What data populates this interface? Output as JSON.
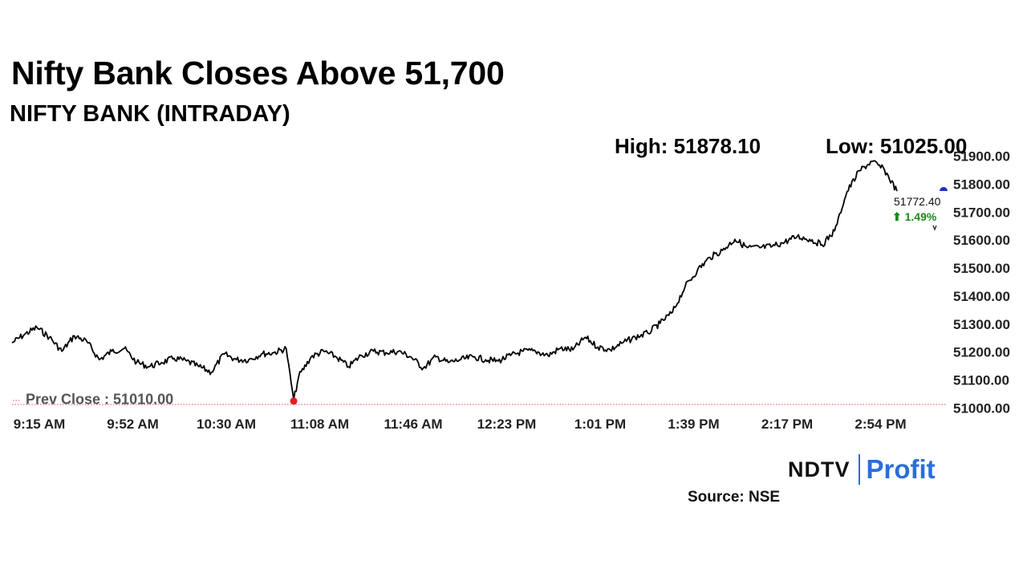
{
  "header": {
    "title": "Nifty Bank Closes Above 51,700",
    "subtitle": "NIFTY BANK (INTRADAY)",
    "high_label": "High: 51878.10",
    "low_label": "Low: 51025.00"
  },
  "last": {
    "value_label": "51772.40",
    "change_label": "⬆ 1.49%"
  },
  "prev_close_label": "Prev Close : 51010.00",
  "footer": {
    "brand_main": "NDTV",
    "brand_accent": "Profit",
    "source": "Source: NSE"
  },
  "colors": {
    "line": "#000000",
    "high_marker": "#1a8a1a",
    "low_marker": "#e02020",
    "change_up": "#1a8a1a",
    "prev_close_line": "#e05050",
    "current_marker": "#1f2fbf",
    "brand_accent": "#2a6edb"
  },
  "chart_data": {
    "type": "line",
    "title": "NIFTY BANK (INTRADAY)",
    "xlabel": "",
    "ylabel": "",
    "x_ticks": [
      "9:15 AM",
      "9:52 AM",
      "10:30 AM",
      "11:08 AM",
      "11:46 AM",
      "12:23 PM",
      "1:01 PM",
      "1:39 PM",
      "2:17 PM",
      "2:54 PM"
    ],
    "y_ticks": [
      51000,
      51100,
      51200,
      51300,
      51400,
      51500,
      51600,
      51700,
      51800,
      51900
    ],
    "y_tick_labels": [
      "51000.00",
      "51100.00",
      "51200.00",
      "51300.00",
      "51400.00",
      "51500.00",
      "51600.00",
      "51700.00",
      "51800.00",
      "51900.00"
    ],
    "ylim": [
      51000,
      51900
    ],
    "x_range": [
      "9:15 AM",
      "3:30 PM"
    ],
    "grid": false,
    "prev_close": 51010.0,
    "high": 51878.1,
    "low": 51025.0,
    "last": 51772.4,
    "change_pct": 1.49,
    "series": [
      {
        "x": [
          "9:15 AM",
          "9:20 AM",
          "9:25 AM",
          "9:30 AM",
          "9:35 AM",
          "9:40 AM",
          "9:45 AM",
          "9:50 AM",
          "9:55 AM",
          "10:00 AM",
          "10:05 AM",
          "10:10 AM",
          "10:15 AM",
          "10:20 AM",
          "10:25 AM",
          "10:30 AM",
          "10:35 AM",
          "10:40 AM",
          "10:45 AM",
          "10:50 AM",
          "10:55 AM",
          "11:00 AM",
          "11:05 AM",
          "11:08 AM",
          "11:10 AM",
          "11:15 AM",
          "11:20 AM",
          "11:25 AM",
          "11:30 AM",
          "11:35 AM",
          "11:40 AM",
          "11:45 AM",
          "11:50 AM",
          "11:55 AM",
          "12:00 PM",
          "12:05 PM",
          "12:10 PM",
          "12:15 PM",
          "12:20 PM",
          "12:25 PM",
          "12:30 PM",
          "12:35 PM",
          "12:40 PM",
          "12:45 PM",
          "12:50 PM",
          "12:55 PM",
          "1:00 PM",
          "1:05 PM",
          "1:10 PM",
          "1:15 PM",
          "1:20 PM",
          "1:25 PM",
          "1:30 PM",
          "1:35 PM",
          "1:40 PM",
          "1:45 PM",
          "1:50 PM",
          "1:55 PM",
          "2:00 PM",
          "2:05 PM",
          "2:10 PM",
          "2:15 PM",
          "2:20 PM",
          "2:25 PM",
          "2:30 PM",
          "2:35 PM",
          "2:40 PM",
          "2:45 PM",
          "2:50 PM",
          "2:55 PM",
          "3:00 PM",
          "3:05 PM",
          "3:10 PM"
        ],
        "values": [
          51230,
          51260,
          51285,
          51250,
          51200,
          51255,
          51235,
          51170,
          51200,
          51210,
          51160,
          51145,
          51160,
          51175,
          51165,
          51145,
          51125,
          51190,
          51170,
          51170,
          51190,
          51195,
          51210,
          51025,
          51110,
          51180,
          51200,
          51180,
          51145,
          51185,
          51200,
          51195,
          51200,
          51180,
          51140,
          51180,
          51160,
          51170,
          51180,
          51170,
          51165,
          51185,
          51200,
          51200,
          51185,
          51210,
          51205,
          51250,
          51215,
          51205,
          51230,
          51250,
          51265,
          51300,
          51340,
          51430,
          51490,
          51535,
          51560,
          51600,
          51570,
          51570,
          51575,
          51590,
          51610,
          51600,
          51580,
          51630,
          51770,
          51845,
          51878,
          51848,
          51772
        ]
      }
    ]
  }
}
